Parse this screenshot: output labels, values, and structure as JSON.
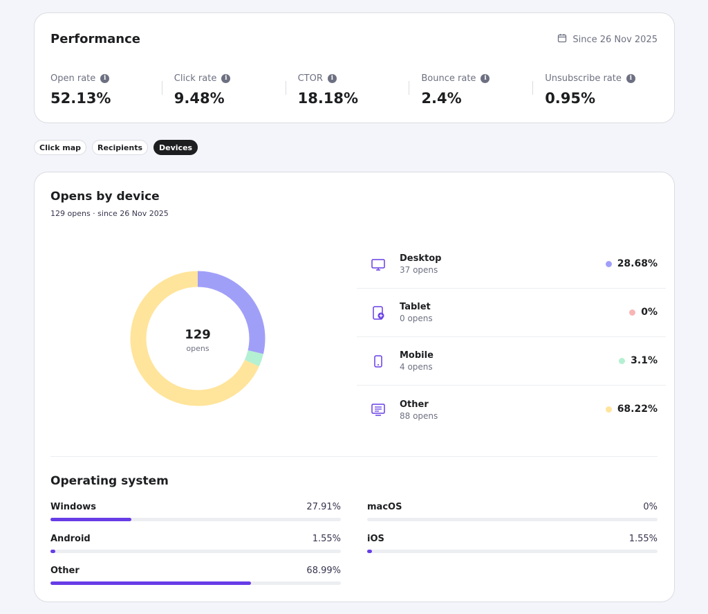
{
  "performance": {
    "title": "Performance",
    "since": "Since 26 Nov 2025",
    "metrics": [
      {
        "label": "Open rate",
        "value": "52.13%"
      },
      {
        "label": "Click rate",
        "value": "9.48%"
      },
      {
        "label": "CTOR",
        "value": "18.18%"
      },
      {
        "label": "Bounce rate",
        "value": "2.4%"
      },
      {
        "label": "Unsubscribe rate",
        "value": "0.95%"
      }
    ]
  },
  "tabs": [
    {
      "label": "Click map",
      "active": false
    },
    {
      "label": "Recipients",
      "active": false
    },
    {
      "label": "Devices",
      "active": true
    }
  ],
  "devices": {
    "title": "Opens by device",
    "subtitle": "129 opens · since 26 Nov 2025",
    "center_value": "129",
    "center_label": "opens",
    "items": [
      {
        "name": "Desktop",
        "opens": "37 opens",
        "percent": "28.68%",
        "value": 28.68,
        "color": "#a09ff8",
        "icon": "desktop-icon"
      },
      {
        "name": "Tablet",
        "opens": "0 opens",
        "percent": "0%",
        "value": 0,
        "color": "#f8b5b5",
        "icon": "tablet-icon"
      },
      {
        "name": "Mobile",
        "opens": "4 opens",
        "percent": "3.1%",
        "value": 3.1,
        "color": "#b4f0d2",
        "icon": "mobile-icon"
      },
      {
        "name": "Other",
        "opens": "88 opens",
        "percent": "68.22%",
        "value": 68.22,
        "color": "#ffe49b",
        "icon": "other-device-icon"
      }
    ]
  },
  "os": {
    "title": "Operating system",
    "items": [
      {
        "name": "Windows",
        "percent": "27.91%",
        "value": 27.91
      },
      {
        "name": "macOS",
        "percent": "0%",
        "value": 0
      },
      {
        "name": "Android",
        "percent": "1.55%",
        "value": 1.55
      },
      {
        "name": "iOS",
        "percent": "1.55%",
        "value": 1.55
      },
      {
        "name": "Other",
        "percent": "68.99%",
        "value": 68.99
      }
    ],
    "bar_color": "#673de6"
  }
}
